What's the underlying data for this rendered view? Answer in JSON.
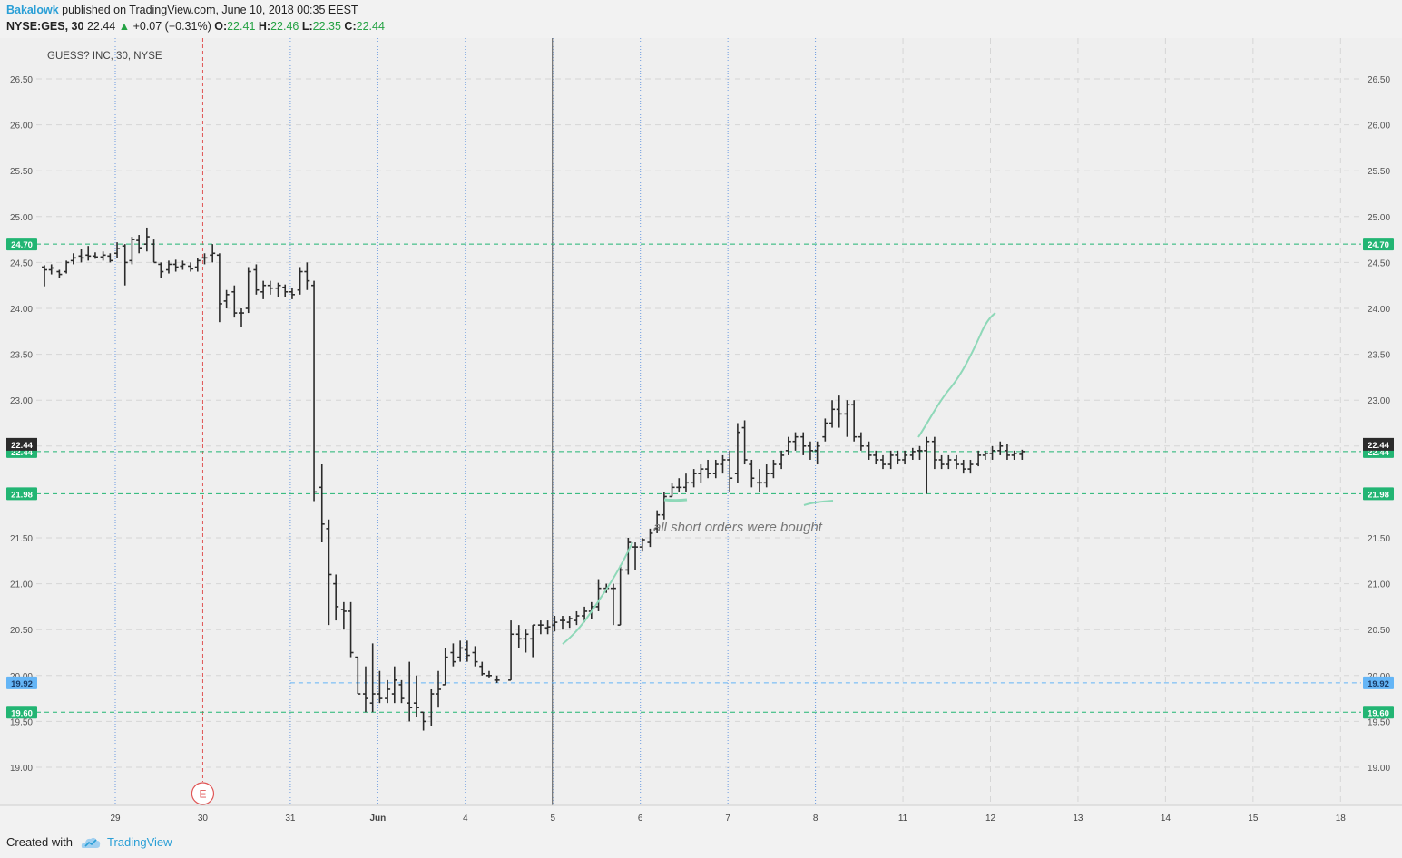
{
  "header": {
    "author": "Bakalowk",
    "published": "published on TradingView.com, June 10, 2018 00:35 EEST",
    "symbol": "NYSE:GES, 30",
    "last": "22.44",
    "change": "+0.07 (+0.31%)",
    "o_label": "O:",
    "o_value": "22.41",
    "h_label": "H:",
    "h_value": "22.46",
    "l_label": "L:",
    "l_value": "22.35",
    "c_label": "C:",
    "c_value": "22.44"
  },
  "footer": {
    "created": "Created with",
    "brand": "TradingView"
  },
  "colors": {
    "background": "#efefef",
    "bars": "#2b2b2b",
    "level_green": "#22b573",
    "level_blue": "#64b5f6",
    "annotation": "#8ed8b8",
    "earnings": "#e05555"
  },
  "chart_data": {
    "type": "ohlc",
    "title": "GUESS? INC, 30, NYSE",
    "ylim": [
      18.7,
      26.8
    ],
    "y_ticks": [
      "19.00",
      "19.50",
      "20.00",
      "20.50",
      "21.00",
      "21.50",
      "22.50",
      "23.00",
      "23.50",
      "24.00",
      "24.50",
      "25.00",
      "25.50",
      "26.00",
      "26.50"
    ],
    "x_labels": [
      "29",
      "30",
      "31",
      "Jun",
      "4",
      "5",
      "6",
      "7",
      "8",
      "11",
      "12",
      "13",
      "14",
      "15",
      "18"
    ],
    "x_divider_after_index": 4,
    "price_levels": [
      {
        "value": 24.7,
        "label": "24.70",
        "style": "green"
      },
      {
        "value": 22.44,
        "label": "22.44",
        "style": "green"
      },
      {
        "value": 21.98,
        "label": "21.98",
        "style": "green"
      },
      {
        "value": 19.92,
        "label": "19.92",
        "style": "blue",
        "from_index": 2
      },
      {
        "value": 19.6,
        "label": "19.60",
        "style": "green"
      }
    ],
    "last_price": {
      "value": 22.44,
      "label": "22.44"
    },
    "earnings_marker": {
      "day_index": 1,
      "label": "E"
    },
    "annotation": "all short orders were bought",
    "bars": [
      [
        0.0,
        24.45,
        24.47,
        24.24,
        24.42
      ],
      [
        0.08,
        24.42,
        24.48,
        24.37,
        24.44
      ],
      [
        0.17,
        24.4,
        24.42,
        24.33,
        24.37
      ],
      [
        0.25,
        24.4,
        24.52,
        24.38,
        24.5
      ],
      [
        0.33,
        24.52,
        24.6,
        24.48,
        24.55
      ],
      [
        0.42,
        24.57,
        24.65,
        24.5,
        24.55
      ],
      [
        0.5,
        24.58,
        24.68,
        24.52,
        24.57
      ],
      [
        0.58,
        24.57,
        24.61,
        24.54,
        24.56
      ],
      [
        0.67,
        24.56,
        24.62,
        24.52,
        24.58
      ],
      [
        0.75,
        24.57,
        24.6,
        24.5,
        24.52
      ],
      [
        0.83,
        24.6,
        24.72,
        24.55,
        24.65
      ],
      [
        0.92,
        24.68,
        24.7,
        24.25,
        24.5
      ],
      [
        1.0,
        24.52,
        24.78,
        24.48,
        24.75
      ],
      [
        1.08,
        24.74,
        24.8,
        24.6,
        24.66
      ],
      [
        1.17,
        24.7,
        24.88,
        24.62,
        24.78
      ],
      [
        1.25,
        24.7,
        24.75,
        24.5,
        24.5
      ],
      [
        1.33,
        24.48,
        24.5,
        24.33,
        24.4
      ],
      [
        1.42,
        24.42,
        24.52,
        24.38,
        24.48
      ],
      [
        1.5,
        24.48,
        24.53,
        24.4,
        24.45
      ],
      [
        1.58,
        24.46,
        24.52,
        24.42,
        24.48
      ],
      [
        1.67,
        24.46,
        24.5,
        24.4,
        24.43
      ],
      [
        1.75,
        24.45,
        24.55,
        24.4,
        24.52
      ],
      [
        1.83,
        24.55,
        24.6,
        24.48,
        24.55
      ],
      [
        1.92,
        24.58,
        24.7,
        24.5,
        24.6
      ],
      [
        2.0,
        24.58,
        24.6,
        23.85,
        24.05
      ],
      [
        2.08,
        24.08,
        24.2,
        24.0,
        24.15
      ],
      [
        2.17,
        24.18,
        24.25,
        23.9,
        23.95
      ],
      [
        2.25,
        23.95,
        24.0,
        23.8,
        23.95
      ],
      [
        2.33,
        24.0,
        24.45,
        23.95,
        24.4
      ],
      [
        2.42,
        24.42,
        24.48,
        24.15,
        24.2
      ],
      [
        2.5,
        24.18,
        24.3,
        24.1,
        24.25
      ],
      [
        2.58,
        24.25,
        24.3,
        24.15,
        24.22
      ],
      [
        2.67,
        24.22,
        24.28,
        24.12,
        24.25
      ],
      [
        2.75,
        24.23,
        24.26,
        24.12,
        24.18
      ],
      [
        2.83,
        24.18,
        24.22,
        24.1,
        24.15
      ],
      [
        2.92,
        24.2,
        24.45,
        24.15,
        24.4
      ],
      [
        3.0,
        24.4,
        24.5,
        24.2,
        24.3
      ],
      [
        3.08,
        24.25,
        24.3,
        21.9,
        22.0
      ],
      [
        3.17,
        22.05,
        22.3,
        21.45,
        21.65
      ],
      [
        3.25,
        21.6,
        21.7,
        20.55,
        21.1
      ],
      [
        3.33,
        21.0,
        21.1,
        20.6,
        20.75
      ],
      [
        3.42,
        20.72,
        20.8,
        20.5,
        20.7
      ],
      [
        3.5,
        20.7,
        20.8,
        20.2,
        20.25
      ],
      [
        3.58,
        20.2,
        20.2,
        19.8,
        19.8
      ],
      [
        3.67,
        19.8,
        20.1,
        19.6,
        19.75
      ],
      [
        3.75,
        19.7,
        20.35,
        19.6,
        19.8
      ],
      [
        3.83,
        19.8,
        20.05,
        19.7,
        19.75
      ],
      [
        3.92,
        19.75,
        19.95,
        19.7,
        19.85
      ],
      [
        4.0,
        19.8,
        20.1,
        19.7,
        19.95
      ],
      [
        4.08,
        19.9,
        19.95,
        19.7,
        19.75
      ],
      [
        4.17,
        19.7,
        20.15,
        19.5,
        19.65
      ],
      [
        4.25,
        19.7,
        20.0,
        19.55,
        19.65
      ],
      [
        4.33,
        19.6,
        19.6,
        19.4,
        19.5
      ],
      [
        4.42,
        19.55,
        19.85,
        19.45,
        19.8
      ],
      [
        4.5,
        19.8,
        20.05,
        19.65,
        19.85
      ],
      [
        4.58,
        19.9,
        20.3,
        19.9,
        20.2
      ],
      [
        4.67,
        20.25,
        20.35,
        20.1,
        20.15
      ],
      [
        4.75,
        20.2,
        20.38,
        20.15,
        20.3
      ],
      [
        4.83,
        20.28,
        20.38,
        20.15,
        20.22
      ],
      [
        4.92,
        20.25,
        20.32,
        20.1,
        20.15
      ],
      [
        5.0,
        20.1,
        20.15,
        20.0,
        20.02
      ],
      [
        5.08,
        20.0,
        20.05,
        19.98,
        20.0
      ],
      [
        5.17,
        19.95,
        20.0,
        19.92,
        19.95
      ],
      [
        5.33,
        19.95,
        20.6,
        19.95,
        20.45
      ],
      [
        5.42,
        20.45,
        20.55,
        20.3,
        20.4
      ],
      [
        5.5,
        20.4,
        20.5,
        20.25,
        20.45
      ],
      [
        5.58,
        20.4,
        20.55,
        20.2,
        20.55
      ],
      [
        5.67,
        20.55,
        20.6,
        20.45,
        20.55
      ],
      [
        5.75,
        20.52,
        20.6,
        20.45,
        20.53
      ],
      [
        5.83,
        20.55,
        20.65,
        20.48,
        20.58
      ],
      [
        5.92,
        20.6,
        20.65,
        20.5,
        20.6
      ],
      [
        6.0,
        20.58,
        20.65,
        20.52,
        20.62
      ],
      [
        6.08,
        20.6,
        20.7,
        20.55,
        20.65
      ],
      [
        6.17,
        20.65,
        20.75,
        20.58,
        20.7
      ],
      [
        6.25,
        20.7,
        20.8,
        20.62,
        20.75
      ],
      [
        6.33,
        20.75,
        21.05,
        20.7,
        20.95
      ],
      [
        6.42,
        20.95,
        21.0,
        20.9,
        20.95
      ],
      [
        6.5,
        20.95,
        21.0,
        20.55,
        20.95
      ],
      [
        6.58,
        20.55,
        21.2,
        20.55,
        21.15
      ],
      [
        6.67,
        21.15,
        21.5,
        21.1,
        21.45
      ],
      [
        6.75,
        21.4,
        21.45,
        21.15,
        21.4
      ],
      [
        6.83,
        21.4,
        21.5,
        21.35,
        21.48
      ],
      [
        6.92,
        21.45,
        21.6,
        21.4,
        21.55
      ],
      [
        7.0,
        21.6,
        21.8,
        21.55,
        21.75
      ],
      [
        7.08,
        21.75,
        22.0,
        21.7,
        21.95
      ],
      [
        7.17,
        21.95,
        22.1,
        21.95,
        22.05
      ],
      [
        7.25,
        22.05,
        22.15,
        22.0,
        22.05
      ],
      [
        7.33,
        22.05,
        22.2,
        22.0,
        22.1
      ],
      [
        7.42,
        22.1,
        22.25,
        22.05,
        22.2
      ],
      [
        7.5,
        22.2,
        22.3,
        22.1,
        22.25
      ],
      [
        7.58,
        22.25,
        22.35,
        22.15,
        22.2
      ],
      [
        7.67,
        22.2,
        22.35,
        22.15,
        22.3
      ],
      [
        7.75,
        22.3,
        22.4,
        22.2,
        22.35
      ],
      [
        7.83,
        22.35,
        22.45,
        22.0,
        22.15
      ],
      [
        7.92,
        22.2,
        22.75,
        22.1,
        22.65
      ],
      [
        8.0,
        22.7,
        22.78,
        22.3,
        22.35
      ],
      [
        8.08,
        22.3,
        22.35,
        22.05,
        22.15
      ],
      [
        8.17,
        22.1,
        22.25,
        22.0,
        22.1
      ],
      [
        8.25,
        22.1,
        22.3,
        22.05,
        22.2
      ],
      [
        8.33,
        22.2,
        22.35,
        22.15,
        22.3
      ],
      [
        8.42,
        22.3,
        22.45,
        22.25,
        22.4
      ],
      [
        8.5,
        22.45,
        22.6,
        22.4,
        22.55
      ],
      [
        8.58,
        22.55,
        22.65,
        22.45,
        22.6
      ],
      [
        8.67,
        22.6,
        22.65,
        22.4,
        22.5
      ],
      [
        8.75,
        22.5,
        22.55,
        22.35,
        22.45
      ],
      [
        8.83,
        22.45,
        22.55,
        22.3,
        22.5
      ],
      [
        8.92,
        22.6,
        22.8,
        22.55,
        22.75
      ],
      [
        9.0,
        22.75,
        23.0,
        22.7,
        22.9
      ],
      [
        9.08,
        22.9,
        23.05,
        22.7,
        22.85
      ],
      [
        9.17,
        22.85,
        23.0,
        22.6,
        22.95
      ],
      [
        9.25,
        22.95,
        23.0,
        22.55,
        22.6
      ],
      [
        9.33,
        22.6,
        22.65,
        22.45,
        22.5
      ],
      [
        9.42,
        22.5,
        22.55,
        22.35,
        22.4
      ],
      [
        9.5,
        22.4,
        22.45,
        22.3,
        22.35
      ],
      [
        9.58,
        22.35,
        22.4,
        22.25,
        22.3
      ],
      [
        9.67,
        22.3,
        22.45,
        22.25,
        22.4
      ],
      [
        9.75,
        22.4,
        22.45,
        22.3,
        22.35
      ],
      [
        9.83,
        22.35,
        22.45,
        22.3,
        22.4
      ],
      [
        9.92,
        22.4,
        22.48,
        22.35,
        22.44
      ],
      [
        10.0,
        22.45,
        22.5,
        22.35,
        22.45
      ],
      [
        10.08,
        22.45,
        22.6,
        21.98,
        22.55
      ],
      [
        10.17,
        22.55,
        22.6,
        22.25,
        22.35
      ],
      [
        10.25,
        22.35,
        22.4,
        22.25,
        22.3
      ],
      [
        10.33,
        22.3,
        22.4,
        22.25,
        22.35
      ],
      [
        10.42,
        22.35,
        22.4,
        22.25,
        22.3
      ],
      [
        10.5,
        22.3,
        22.35,
        22.2,
        22.25
      ],
      [
        10.58,
        22.25,
        22.35,
        22.2,
        22.3
      ],
      [
        10.67,
        22.3,
        22.45,
        22.28,
        22.4
      ],
      [
        10.75,
        22.4,
        22.45,
        22.35,
        22.42
      ],
      [
        10.83,
        22.42,
        22.5,
        22.35,
        22.45
      ],
      [
        10.92,
        22.45,
        22.55,
        22.4,
        22.5
      ],
      [
        11.0,
        22.45,
        22.52,
        22.35,
        22.4
      ],
      [
        11.08,
        22.4,
        22.45,
        22.35,
        22.42
      ],
      [
        11.17,
        22.41,
        22.46,
        22.35,
        22.44
      ]
    ]
  }
}
